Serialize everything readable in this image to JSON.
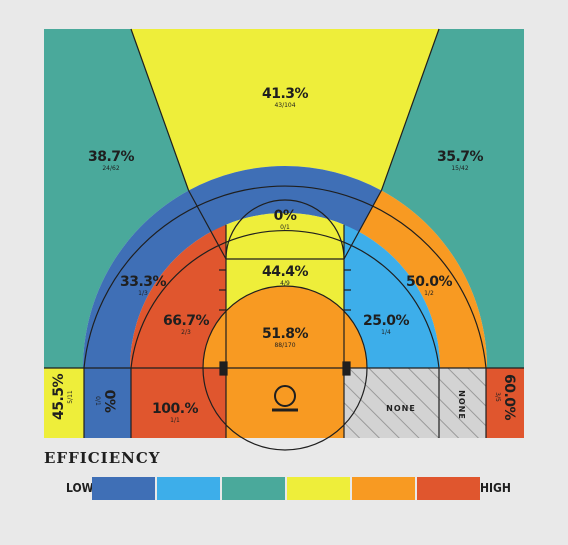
{
  "chart_data": {
    "type": "heatmap",
    "subtype": "basketball shot chart (court zones)",
    "title": "",
    "zones": [
      {
        "id": "left-wing-three",
        "pct": "38.7%",
        "made_attempts": "24/62",
        "level": 3
      },
      {
        "id": "top-three",
        "pct": "41.3%",
        "made_attempts": "43/104",
        "level": 4
      },
      {
        "id": "right-wing-three",
        "pct": "35.7%",
        "made_attempts": "15/42",
        "level": 3
      },
      {
        "id": "top-long-two",
        "pct": "0%",
        "made_attempts": "0/1",
        "level": 1
      },
      {
        "id": "left-elbow-long-two",
        "pct": "33.3%",
        "made_attempts": "1/3",
        "level": 1
      },
      {
        "id": "right-elbow-long-two",
        "pct": "50.0%",
        "made_attempts": "1/2",
        "level": 5
      },
      {
        "id": "top-of-key",
        "pct": "44.4%",
        "made_attempts": "4/9",
        "level": 4
      },
      {
        "id": "left-mid-range",
        "pct": "66.7%",
        "made_attempts": "2/3",
        "level": 6
      },
      {
        "id": "right-mid-range",
        "pct": "25.0%",
        "made_attempts": "1/4",
        "level": 2
      },
      {
        "id": "restricted-area",
        "pct": "51.8%",
        "made_attempts": "88/170",
        "level": 5
      },
      {
        "id": "left-corner-three",
        "pct": "45.5%",
        "made_attempts": "5/11",
        "level": 4
      },
      {
        "id": "left-baseline-long-two",
        "pct": "0%",
        "made_attempts": "0/1",
        "level": 1
      },
      {
        "id": "left-short-baseline",
        "pct": "100.%",
        "made_attempts": "1/1",
        "level": 6
      },
      {
        "id": "right-short-baseline",
        "pct": "NONE",
        "made_attempts": "",
        "level": 0
      },
      {
        "id": "right-baseline-long-two",
        "pct": "NONE",
        "made_attempts": "",
        "level": 0
      },
      {
        "id": "right-corner-three",
        "pct": "60.0%",
        "made_attempts": "3/5",
        "level": 6
      }
    ],
    "legend": {
      "title": "EFFICIENCY",
      "low_label": "LOW",
      "high_label": "HIGH",
      "colors": [
        "#3f6fb6",
        "#3daeea",
        "#4aa99b",
        "#eeee3a",
        "#f89a22",
        "#e0562e"
      ]
    }
  },
  "colors": {
    "background": "#e9e9e9",
    "none_fill": "#cfcfcf",
    "line": "#1f1f1f"
  }
}
